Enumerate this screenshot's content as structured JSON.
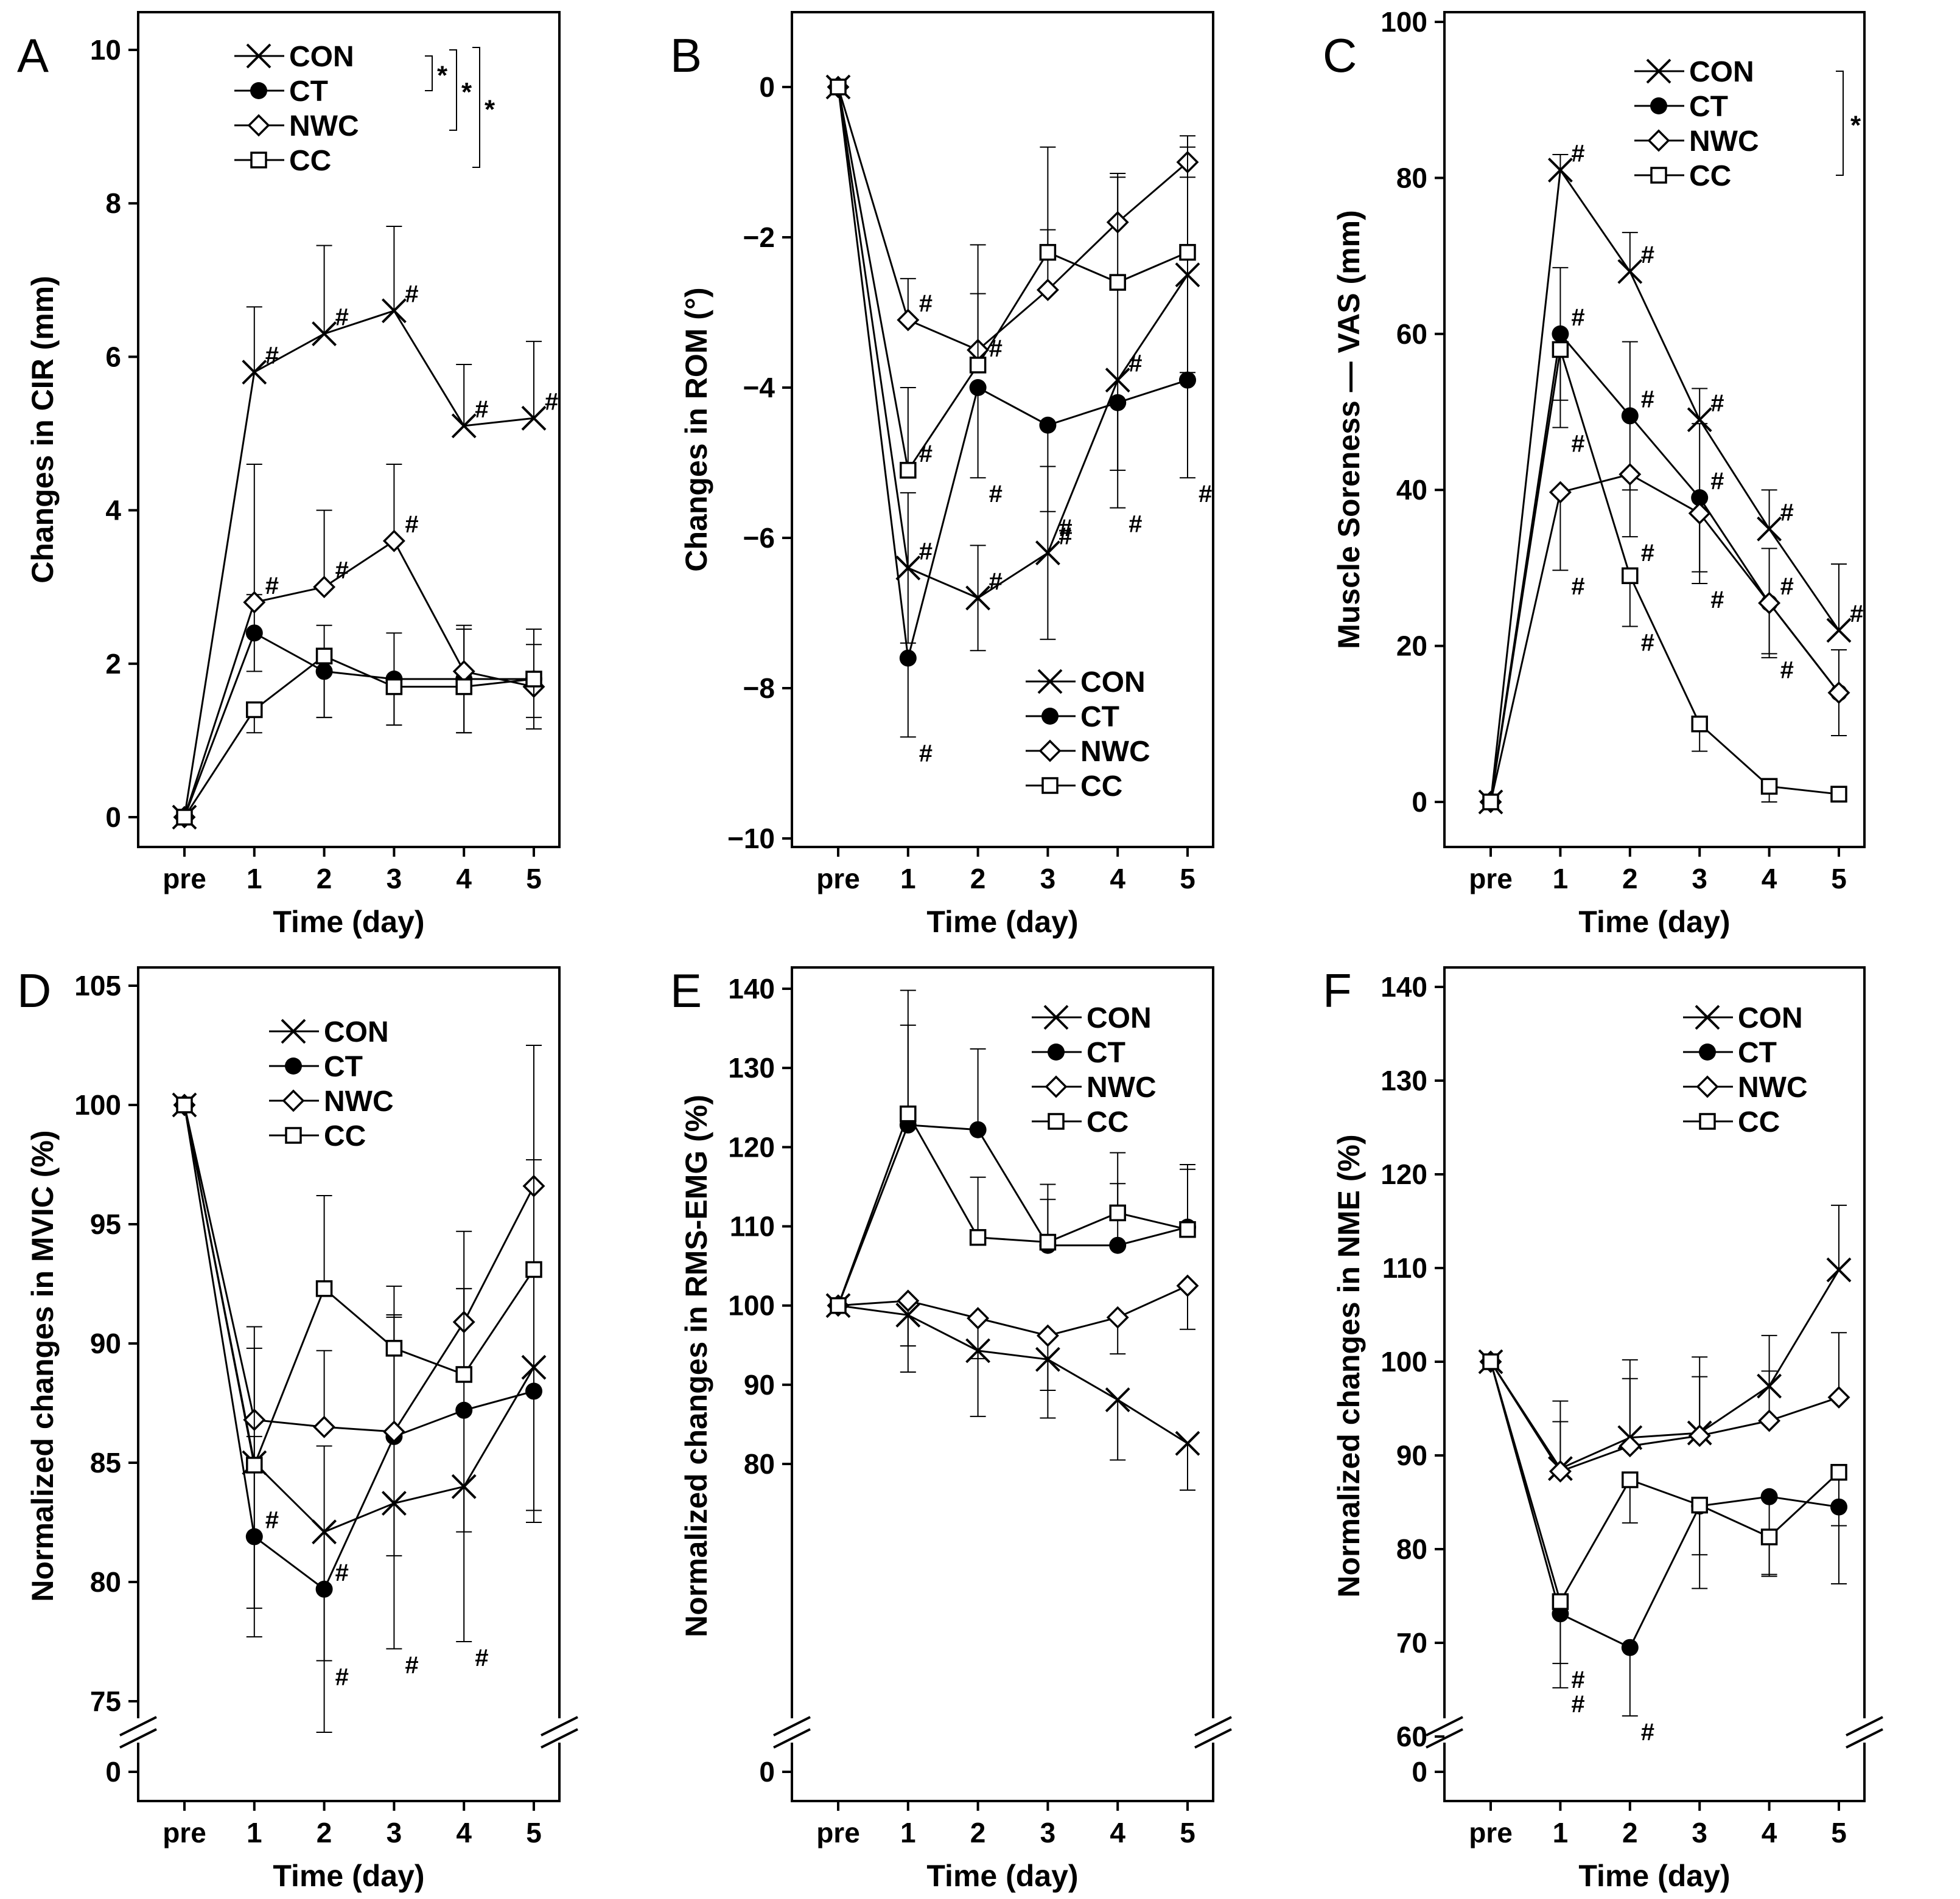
{
  "figure": {
    "series_style": {
      "CON": "x",
      "CT": "filled-circle",
      "NWC": "diamond",
      "CC": "open-square"
    },
    "colors": {
      "ink": "#000000",
      "background": "#ffffff"
    }
  },
  "chart_data": [
    {
      "id": "A",
      "type": "line",
      "panel_label": "A",
      "xlabel": "Time (day)",
      "ylabel": "Changes in CIR (mm)",
      "categories": [
        "pre",
        "1",
        "2",
        "3",
        "4",
        "5"
      ],
      "ylim": [
        -0.4,
        10.4
      ],
      "yticks": [
        0,
        2,
        4,
        6,
        8,
        10
      ],
      "y_break": false,
      "legend": {
        "position": "top-center",
        "entries": [
          "CON",
          "CT",
          "NWC",
          "CC"
        ]
      },
      "significance": [
        {
          "label": "*",
          "between": [
            "CON",
            "CT"
          ]
        },
        {
          "label": "*",
          "between": [
            "CON",
            "NWC"
          ]
        },
        {
          "label": "*",
          "between": [
            "CON",
            "CC"
          ]
        }
      ],
      "series": [
        {
          "name": "CON",
          "values": [
            0,
            5.8,
            6.3,
            6.6,
            5.1,
            5.2
          ],
          "err": [
            0,
            0.85,
            1.15,
            1.1,
            0.8,
            1.0
          ],
          "err_dir": "up",
          "hash": [
            false,
            true,
            true,
            true,
            true,
            true
          ],
          "hash_label": "#"
        },
        {
          "name": "CT",
          "values": [
            0,
            2.4,
            1.9,
            1.8,
            1.8,
            1.8
          ],
          "err": [
            0,
            0.5,
            0.6,
            0.6,
            0.7,
            0.65
          ],
          "err_dir": "both",
          "hash": [
            false,
            false,
            false,
            false,
            false,
            false
          ],
          "hash_label": ""
        },
        {
          "name": "NWC",
          "values": [
            0,
            2.8,
            3.0,
            3.6,
            1.9,
            1.7
          ],
          "err": [
            0,
            1.8,
            1.0,
            1.0,
            0.55,
            0.55
          ],
          "err_dir": "up",
          "hash": [
            false,
            true,
            true,
            true,
            false,
            false
          ],
          "hash_label": "#"
        },
        {
          "name": "CC",
          "values": [
            0,
            1.4,
            2.1,
            1.7,
            1.7,
            1.8
          ],
          "err": [
            0,
            0.3,
            0.8,
            0.5,
            0.6,
            0.5
          ],
          "err_dir": "down",
          "hash": [
            false,
            false,
            false,
            false,
            false,
            false
          ],
          "hash_label": ""
        }
      ]
    },
    {
      "id": "B",
      "type": "line",
      "panel_label": "B",
      "xlabel": "Time (day)",
      "ylabel": "Changes in ROM (°)",
      "categories": [
        "pre",
        "1",
        "2",
        "3",
        "4",
        "5"
      ],
      "ylim": [
        -10,
        1
      ],
      "yticks": [
        0,
        -2,
        -4,
        -6,
        -8,
        -10
      ],
      "ytick_labels": [
        "0",
        "−2",
        "−4",
        "−6",
        "−8",
        "−10"
      ],
      "y_break": false,
      "legend": {
        "position": "bottom-right",
        "entries": [
          "CON",
          "CT",
          "NWC",
          "CC"
        ]
      },
      "significance": [],
      "series": [
        {
          "name": "CON",
          "values": [
            0,
            -6.4,
            -6.8,
            -6.2,
            -3.9,
            -2.5
          ],
          "err": [
            0,
            1.0,
            0.7,
            1.15,
            1.2,
            1.3
          ],
          "err_dir": "both",
          "hash": [
            false,
            true,
            true,
            true,
            true,
            false
          ],
          "hash_label": "#"
        },
        {
          "name": "CT",
          "values": [
            0,
            -7.6,
            -4.0,
            -4.5,
            -4.2,
            -3.9
          ],
          "err": [
            0,
            1.05,
            1.2,
            1.15,
            1.4,
            1.3
          ],
          "err_dir": "down",
          "hash": [
            false,
            true,
            true,
            true,
            true,
            true
          ],
          "hash_label": "#"
        },
        {
          "name": "NWC",
          "values": [
            0,
            -3.1,
            -3.5,
            -2.7,
            -1.8,
            -1.0
          ],
          "err": [
            0,
            0.55,
            0.75,
            0.8,
            0.6,
            0.35
          ],
          "err_dir": "up",
          "hash": [
            false,
            true,
            false,
            false,
            false,
            false
          ],
          "hash_label": "#"
        },
        {
          "name": "CC",
          "values": [
            0,
            -5.1,
            -3.7,
            -2.2,
            -2.6,
            -2.2
          ],
          "err": [
            0,
            1.1,
            1.6,
            1.4,
            1.45,
            1.4
          ],
          "err_dir": "up",
          "hash": [
            false,
            true,
            true,
            false,
            false,
            false
          ],
          "hash_label": "#"
        }
      ]
    },
    {
      "id": "C",
      "type": "line",
      "panel_label": "C",
      "xlabel": "Time (day)",
      "ylabel": "Muscle Soreness — VAS (mm)",
      "categories": [
        "pre",
        "1",
        "2",
        "3",
        "4",
        "5"
      ],
      "ylim": [
        -5,
        101
      ],
      "yticks": [
        0,
        20,
        40,
        60,
        80,
        100
      ],
      "y_break": false,
      "legend": {
        "position": "top-right",
        "entries": [
          "CON",
          "CT",
          "NWC",
          "CC"
        ]
      },
      "significance": [
        {
          "label": "*",
          "between": [
            "CON",
            "CC"
          ]
        }
      ],
      "series": [
        {
          "name": "CON",
          "values": [
            0,
            81,
            68,
            49,
            35,
            22
          ],
          "err": [
            0,
            2,
            5,
            4,
            5,
            8.5
          ],
          "err_dir": "up",
          "hash": [
            false,
            true,
            true,
            true,
            true,
            true
          ],
          "hash_label": "#"
        },
        {
          "name": "CT",
          "values": [
            0,
            60,
            49.5,
            39,
            25.5,
            14
          ],
          "err": [
            0,
            8.5,
            9.5,
            9.5,
            7,
            5.5
          ],
          "err_dir": "both",
          "hash": [
            false,
            true,
            true,
            true,
            true,
            false
          ],
          "hash_label": "#"
        },
        {
          "name": "NWC",
          "values": [
            0,
            39.7,
            42,
            37,
            25.5,
            14
          ],
          "err": [
            0,
            10,
            8,
            9,
            6.5,
            5.5
          ],
          "err_dir": "down",
          "hash": [
            false,
            true,
            true,
            true,
            true,
            false
          ],
          "hash_label": "#"
        },
        {
          "name": "CC",
          "values": [
            0,
            58,
            29,
            10,
            2,
            1
          ],
          "err": [
            0,
            10,
            6.5,
            3.5,
            2,
            1
          ],
          "err_dir": "down",
          "hash": [
            false,
            true,
            true,
            false,
            false,
            false
          ],
          "hash_label": "#"
        }
      ]
    },
    {
      "id": "D",
      "type": "line",
      "panel_label": "D",
      "xlabel": "Time (day)",
      "ylabel": "Normalized changes in MVIC (%)",
      "categories": [
        "pre",
        "1",
        "2",
        "3",
        "4",
        "5"
      ],
      "ylim": [
        72,
        106
      ],
      "yticks": [
        75,
        80,
        85,
        90,
        95,
        100,
        105
      ],
      "y_break": true,
      "y_break_baseline": 0,
      "legend": {
        "position": "top-center",
        "entries": [
          "CON",
          "CT",
          "NWC",
          "CC"
        ]
      },
      "significance": [],
      "series": [
        {
          "name": "CON",
          "values": [
            100,
            85.0,
            82.1,
            83.3,
            84.0,
            89.0
          ],
          "err": [
            0,
            6.1,
            5.4,
            6.1,
            6.5,
            6.5
          ],
          "err_dir": "down",
          "hash": [
            false,
            false,
            true,
            true,
            true,
            false
          ],
          "hash_label": "#"
        },
        {
          "name": "CT",
          "values": [
            100,
            81.9,
            79.7,
            86.1,
            87.2,
            88.0
          ],
          "err": [
            0,
            4.2,
            6.0,
            5.0,
            5.1,
            5.0
          ],
          "err_dir": "both",
          "hash": [
            false,
            true,
            true,
            false,
            false,
            false
          ],
          "hash_label": "#"
        },
        {
          "name": "NWC",
          "values": [
            100,
            86.8,
            86.5,
            86.3,
            90.9,
            96.6
          ],
          "err": [
            0,
            3.9,
            3.2,
            4.9,
            3.8,
            5.9
          ],
          "err_dir": "up",
          "hash": [
            false,
            false,
            false,
            false,
            false,
            false
          ],
          "hash_label": ""
        },
        {
          "name": "CC",
          "values": [
            100,
            84.9,
            92.3,
            89.8,
            88.7,
            93.1
          ],
          "err": [
            0,
            4.9,
            3.9,
            2.6,
            3.6,
            4.6
          ],
          "err_dir": "up",
          "hash": [
            false,
            false,
            false,
            false,
            false,
            false
          ],
          "hash_label": ""
        }
      ]
    },
    {
      "id": "E",
      "type": "line",
      "panel_label": "E",
      "xlabel": "Time (day)",
      "ylabel": "Normalized changes in RMS-EMG (%)",
      "categories": [
        "pre",
        "1",
        "2",
        "3",
        "4",
        "5"
      ],
      "ylim": [
        75,
        141
      ],
      "yticks": [
        80,
        90,
        100,
        110,
        120,
        130,
        140
      ],
      "y_break": true,
      "y_break_baseline": 0,
      "legend": {
        "position": "top-right",
        "entries": [
          "CON",
          "CT",
          "NWC",
          "CC"
        ]
      },
      "significance": [],
      "series": [
        {
          "name": "CON",
          "values": [
            100,
            98.8,
            94.3,
            93.2,
            88.1,
            82.6
          ],
          "err": [
            0,
            7.2,
            8.3,
            7.4,
            7.6,
            5.9
          ],
          "err_dir": "down",
          "hash": [
            false,
            false,
            false,
            false,
            false,
            false
          ],
          "hash_label": ""
        },
        {
          "name": "CT",
          "values": [
            100,
            122.8,
            122.2,
            107.6,
            107.6,
            109.9
          ],
          "err": [
            0,
            12.6,
            10.2,
            7.7,
            7.8,
            7.9
          ],
          "err_dir": "up",
          "hash": [
            false,
            false,
            false,
            false,
            false,
            false
          ],
          "hash_label": ""
        },
        {
          "name": "NWC",
          "values": [
            100,
            100.6,
            98.4,
            96.2,
            98.5,
            102.5
          ],
          "err": [
            0,
            5.7,
            5.1,
            6.9,
            4.6,
            5.5
          ],
          "err_dir": "down",
          "hash": [
            false,
            false,
            false,
            false,
            false,
            false
          ],
          "hash_label": ""
        },
        {
          "name": "CC",
          "values": [
            100,
            124.2,
            108.6,
            108.0,
            111.7,
            109.6
          ],
          "err": [
            0,
            15.6,
            7.6,
            5.4,
            7.6,
            7.6
          ],
          "err_dir": "up",
          "hash": [
            false,
            false,
            false,
            false,
            false,
            false
          ],
          "hash_label": ""
        }
      ]
    },
    {
      "id": "F",
      "type": "line",
      "panel_label": "F",
      "xlabel": "Time (day)",
      "ylabel": "Normalized changes in NME (%)",
      "categories": [
        "pre",
        "1",
        "2",
        "3",
        "4",
        "5"
      ],
      "ylim": [
        58,
        141
      ],
      "yticks": [
        60,
        70,
        80,
        90,
        100,
        110,
        120,
        130,
        140
      ],
      "y_break": true,
      "y_break_baseline": 0,
      "legend": {
        "position": "top-right",
        "entries": [
          "CON",
          "CT",
          "NWC",
          "CC"
        ]
      },
      "significance": [],
      "series": [
        {
          "name": "CON",
          "values": [
            100,
            88.6,
            91.9,
            92.4,
            97.4,
            109.8
          ],
          "err": [
            0,
            7.2,
            8.3,
            8.1,
            5.4,
            6.9
          ],
          "err_dir": "up",
          "hash": [
            false,
            false,
            false,
            false,
            false,
            false
          ],
          "hash_label": ""
        },
        {
          "name": "CT",
          "values": [
            100,
            73.1,
            69.5,
            84.6,
            85.6,
            84.5
          ],
          "err": [
            0,
            7.9,
            7.3,
            8.8,
            8.5,
            8.2
          ],
          "err_dir": "down",
          "hash": [
            false,
            true,
            true,
            false,
            false,
            false
          ],
          "hash_label": "#"
        },
        {
          "name": "NWC",
          "values": [
            100,
            88.3,
            91.0,
            92.1,
            93.7,
            96.2
          ],
          "err": [
            0,
            5.3,
            7.2,
            6.3,
            5.3,
            6.9
          ],
          "err_dir": "up",
          "hash": [
            false,
            false,
            false,
            false,
            false,
            false
          ],
          "hash_label": ""
        },
        {
          "name": "CC",
          "values": [
            100,
            74.4,
            87.4,
            84.7,
            81.3,
            88.2
          ],
          "err": [
            0,
            6.6,
            4.6,
            5.3,
            4.0,
            5.7
          ],
          "err_dir": "down",
          "hash": [
            false,
            true,
            false,
            false,
            false,
            false
          ],
          "hash_label": "#"
        }
      ]
    }
  ]
}
